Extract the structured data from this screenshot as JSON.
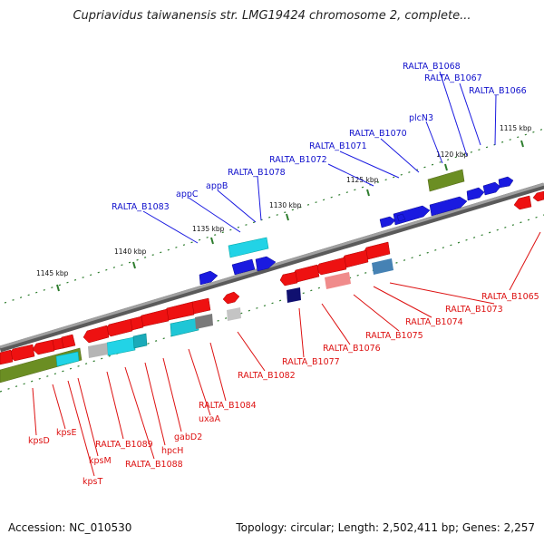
{
  "title": "Cupriavidus taiwanensis str. LMG19424 chromosome 2, complete...",
  "footer": {
    "accession": "Accession: NC_010530",
    "summary": "Topology: circular; Length: 2,502,411 bp; Genes: 2,257"
  },
  "colors": {
    "plus_label": "#1010cc",
    "minus_label": "#dd1111",
    "red_gene": "#ee1111",
    "blue_gene": "#1a1ae0",
    "backbone": "#909090",
    "tick": "#2e7d2e"
  },
  "kbp_ticks": [
    "1115 kbp",
    "1120 kbp",
    "1125 kbp",
    "1130 kbp",
    "1135 kbp",
    "1140 kbp",
    "1145 kbp"
  ],
  "plus_labels": [
    "RALTA_B1068",
    "RALTA_B1067",
    "RALTA_B1066",
    "plcN3",
    "RALTA_B1070",
    "RALTA_B1071",
    "RALTA_B1072",
    "RALTA_B1078",
    "appB",
    "appC",
    "RALTA_B1083"
  ],
  "minus_labels": [
    "RALTA_B1065",
    "RALTA_B1073",
    "RALTA_B1074",
    "RALTA_B1075",
    "RALTA_B1076",
    "RALTA_B1077",
    "RALTA_B1082",
    "RALTA_B1084",
    "uxaA",
    "gabD2",
    "hpcH",
    "RALTA_B1088",
    "RALTA_B1089",
    "kpsM",
    "kpsT",
    "kpsE",
    "kpsD"
  ]
}
